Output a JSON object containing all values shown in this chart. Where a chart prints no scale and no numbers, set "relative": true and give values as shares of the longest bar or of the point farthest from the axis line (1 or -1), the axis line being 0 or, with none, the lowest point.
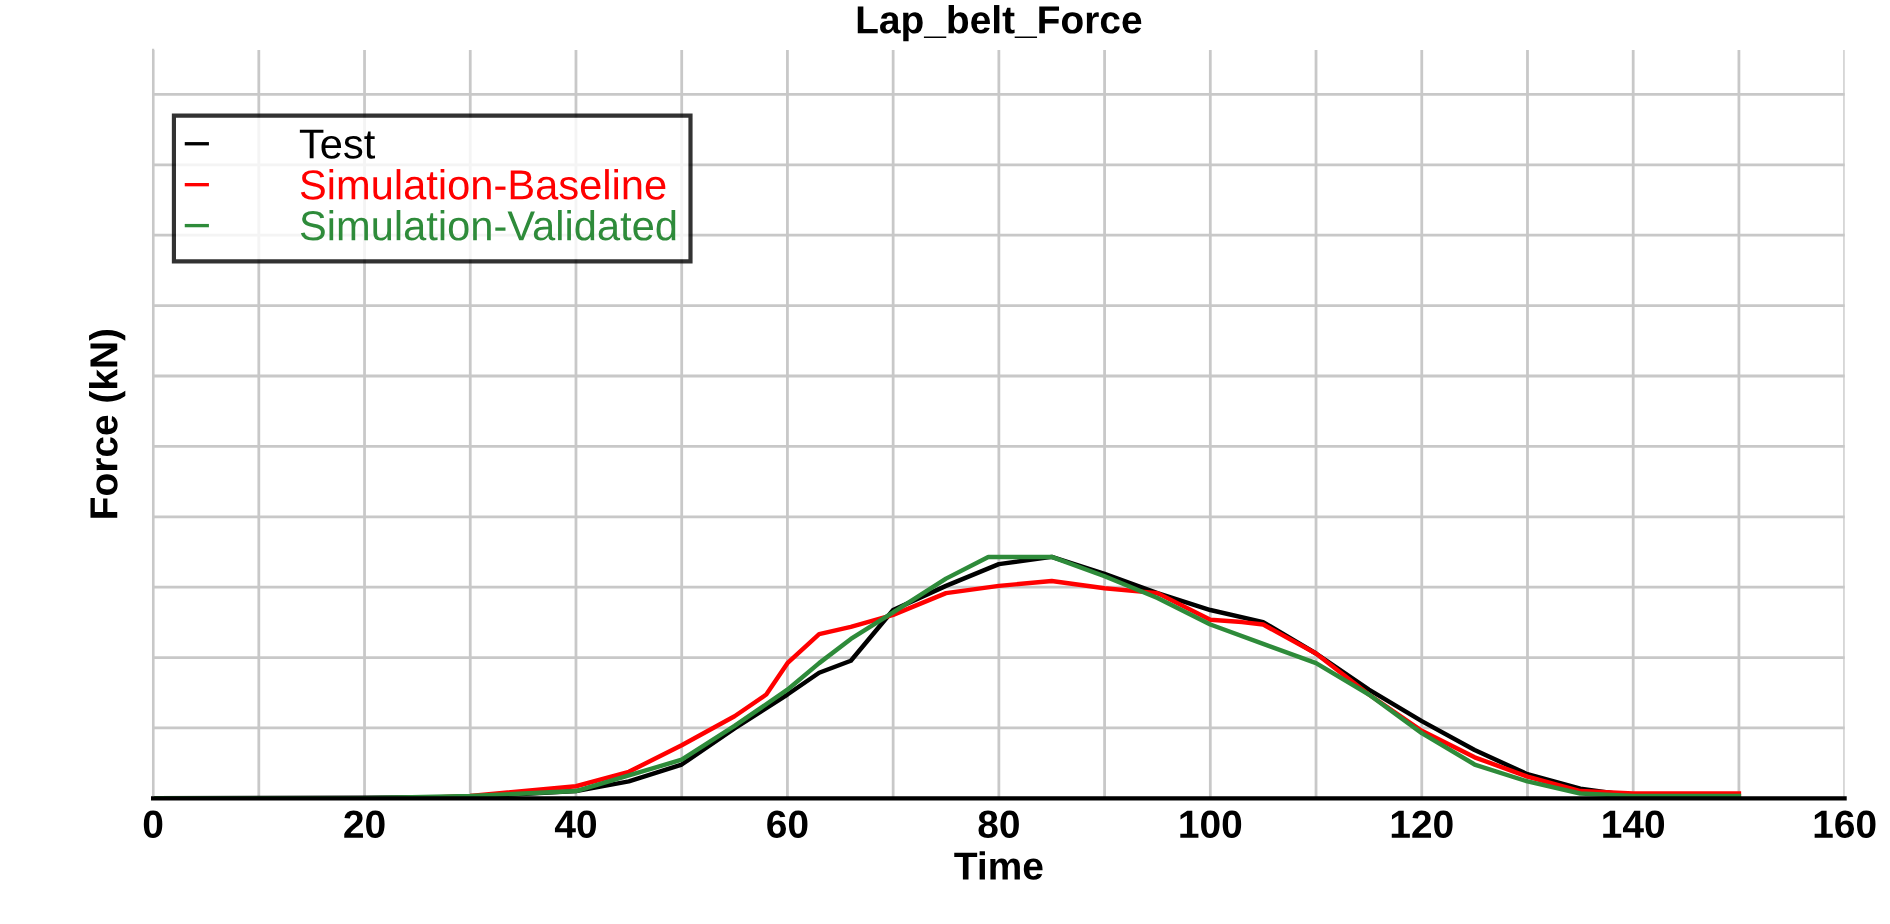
{
  "chart_data": {
    "type": "line",
    "title": "Lap_belt_Force",
    "xlabel": "Time",
    "ylabel": "Force (kN)",
    "relative": true,
    "xlim": [
      0,
      160
    ],
    "xticks": [
      0,
      {
        "value": 10,
        "label": null
      },
      20,
      {
        "value": 30,
        "label": null
      },
      40,
      {
        "value": 50,
        "label": null
      },
      60,
      {
        "value": 70,
        "label": null
      },
      80,
      {
        "value": 90,
        "label": null
      },
      100,
      {
        "value": 110,
        "label": null
      },
      120,
      {
        "value": 130,
        "label": null
      },
      140,
      {
        "value": 150,
        "label": null
      },
      160
    ],
    "tick_labels": "x",
    "grid": true,
    "legend": "top left",
    "marker": "none",
    "line_style": "solid",
    "series": [
      {
        "name": "Test",
        "color": "#000000",
        "x": [
          0,
          20,
          30,
          40,
          45,
          50,
          55,
          60,
          63,
          66,
          70,
          75,
          80,
          85,
          90,
          95,
          100,
          105,
          110,
          115,
          120,
          125,
          130,
          135,
          140,
          150
        ],
        "values": [
          0,
          0.003,
          0.006,
          0.03,
          0.07,
          0.14,
          0.29,
          0.43,
          0.52,
          0.57,
          0.78,
          0.88,
          0.97,
          1,
          0.93,
          0.85,
          0.78,
          0.73,
          0.6,
          0.45,
          0.32,
          0.2,
          0.1,
          0.04,
          0.01,
          0
        ]
      },
      {
        "name": "Simulation-Baseline",
        "color": "#ff0000",
        "x": [
          25,
          30,
          40,
          45,
          50,
          55,
          58,
          60,
          63,
          66,
          70,
          75,
          80,
          85,
          90,
          95,
          100,
          103,
          105,
          110,
          115,
          120,
          125,
          130,
          135,
          140,
          150
        ],
        "values": [
          0,
          0.01,
          0.05,
          0.11,
          0.22,
          0.34,
          0.43,
          0.56,
          0.68,
          0.71,
          0.76,
          0.85,
          0.88,
          0.9,
          0.87,
          0.85,
          0.74,
          0.73,
          0.72,
          0.6,
          0.43,
          0.28,
          0.17,
          0.09,
          0.03,
          0.02,
          0.02
        ]
      },
      {
        "name": "Simulation-Validated",
        "color": "#2e8b3a",
        "x": [
          0,
          20,
          30,
          40,
          50,
          55,
          60,
          63,
          66,
          70,
          75,
          79,
          85,
          90,
          95,
          100,
          105,
          110,
          115,
          120,
          125,
          130,
          135,
          140,
          150
        ],
        "values": [
          0,
          0,
          0.01,
          0.03,
          0.16,
          0.3,
          0.45,
          0.56,
          0.66,
          0.77,
          0.91,
          1,
          1,
          0.92,
          0.83,
          0.72,
          0.64,
          0.56,
          0.43,
          0.27,
          0.14,
          0.07,
          0.02,
          0.01,
          0.01
        ]
      }
    ]
  }
}
